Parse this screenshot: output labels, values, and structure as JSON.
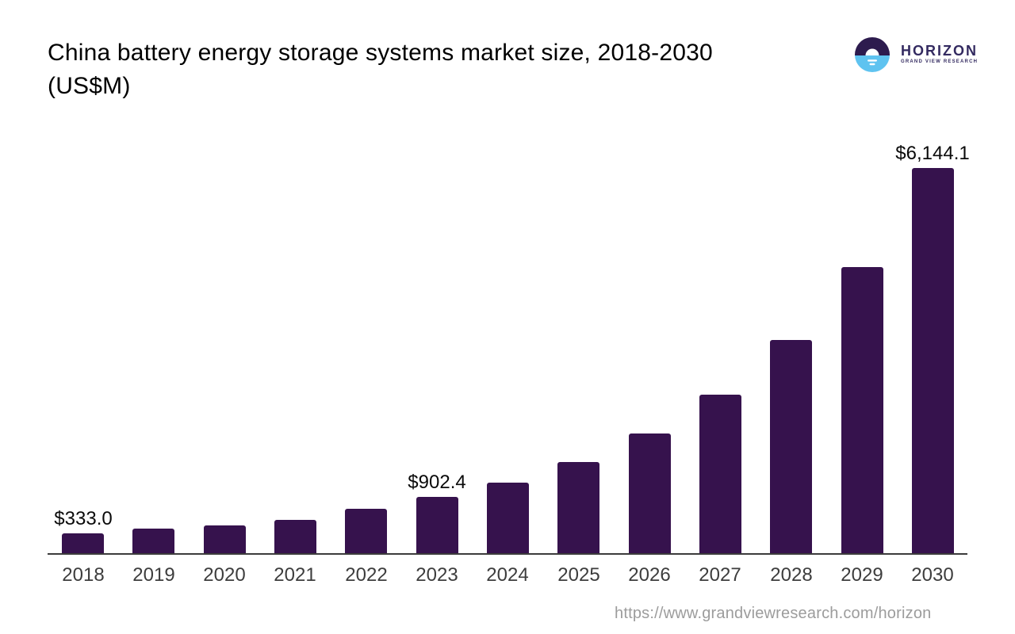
{
  "header": {
    "title_line1": "China battery energy storage systems market size, 2018-2030",
    "title_line2": "(US$M)"
  },
  "logo": {
    "wordmark": "HORIZON",
    "subtitle": "GRAND VIEW RESEARCH"
  },
  "chart_data": {
    "type": "bar",
    "title": "China battery energy storage systems market size, 2018-2030 (US$M)",
    "categories": [
      "2018",
      "2019",
      "2020",
      "2021",
      "2022",
      "2023",
      "2024",
      "2025",
      "2026",
      "2027",
      "2028",
      "2029",
      "2030"
    ],
    "values": [
      333.0,
      400,
      455,
      540,
      715,
      902.4,
      1140,
      1465,
      1920,
      2540,
      3410,
      4570,
      6144.1
    ],
    "value_labels": [
      "$333.0",
      "",
      "",
      "",
      "",
      "$902.4",
      "",
      "",
      "",
      "",
      "",
      "",
      "$6,144.1"
    ],
    "xlabel": "",
    "ylabel": "US$M",
    "ylim": [
      0,
      6400
    ],
    "grid": false,
    "legend": false,
    "bar_color": "#36124d"
  },
  "footer": {
    "source_url": "https://www.grandviewresearch.com/horizon"
  },
  "colors": {
    "bar": "#36124d",
    "axis": "#3c3c3c",
    "year_label": "#3d3d3d",
    "value_label": "#0a0a0a",
    "title": "#000000",
    "logo_purple": "#2d1b4e",
    "logo_blue": "#5fc3f0",
    "logo_text": "#332a60",
    "url_gray": "#9c9c9c"
  }
}
